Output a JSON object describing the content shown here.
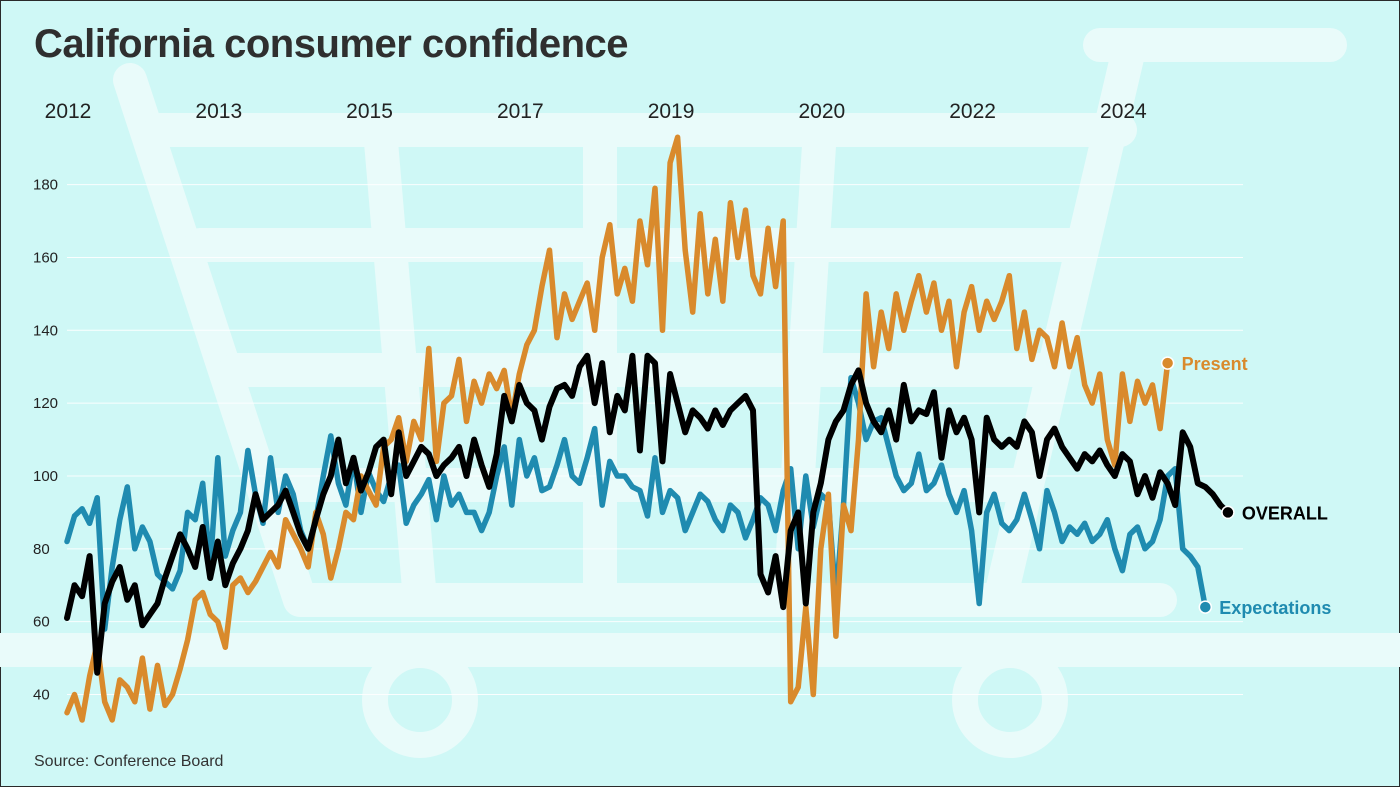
{
  "title": "California consumer confidence",
  "source": "Source: Conference Board",
  "colors": {
    "background": "#cff8f6",
    "cart": "#e9fbfa",
    "overall": "#000000",
    "present": "#d98a2c",
    "expectations": "#1f8bb0",
    "grid": "#ffffff"
  },
  "background_icon": "shopping-cart-icon",
  "chart_data": {
    "type": "line",
    "title": "California consumer confidence",
    "x_tick_labels": [
      "2012",
      "2013",
      "2015",
      "2017",
      "2019",
      "2020",
      "2022",
      "2024"
    ],
    "y_ticks": [
      40,
      60,
      80,
      100,
      120,
      140,
      160,
      180
    ],
    "ylim": [
      33,
      195
    ],
    "x_range": [
      0,
      156
    ],
    "x_tick_positions": [
      0,
      20,
      40,
      60,
      80,
      100,
      120,
      140
    ],
    "grid": "horizontal",
    "legend": "inline labels at right end of each line",
    "series": [
      {
        "name": "Present",
        "color": "#d98a2c",
        "values": [
          35,
          40,
          33,
          45,
          54,
          38,
          33,
          44,
          42,
          38,
          50,
          36,
          48,
          37,
          40,
          47,
          55,
          66,
          68,
          62,
          60,
          53,
          70,
          72,
          68,
          71,
          75,
          79,
          75,
          88,
          84,
          80,
          75,
          90,
          84,
          72,
          80,
          90,
          88,
          100,
          96,
          92,
          108,
          110,
          116,
          104,
          115,
          110,
          135,
          104,
          120,
          122,
          132,
          115,
          126,
          120,
          128,
          124,
          129,
          116,
          128,
          136,
          140,
          152,
          162,
          138,
          150,
          143,
          148,
          153,
          140,
          160,
          169,
          150,
          157,
          148,
          170,
          158,
          179,
          140,
          186,
          193,
          162,
          145,
          172,
          150,
          165,
          148,
          175,
          160,
          173,
          155,
          150,
          168,
          152,
          170,
          38,
          42,
          64,
          40,
          80,
          95,
          56,
          92,
          85,
          110,
          150,
          130,
          145,
          135,
          150,
          140,
          148,
          155,
          145,
          153,
          140,
          148,
          130,
          145,
          152,
          140,
          148,
          143,
          148,
          155,
          135,
          145,
          132,
          140,
          138,
          130,
          142,
          130,
          138,
          125,
          120,
          128,
          110,
          103,
          128,
          115,
          126,
          120,
          125,
          113,
          131
        ]
      },
      {
        "name": "OVERALL",
        "color": "#000000",
        "values": [
          61,
          70,
          67,
          78,
          46,
          65,
          71,
          75,
          66,
          70,
          59,
          62,
          65,
          72,
          78,
          84,
          80,
          75,
          86,
          72,
          82,
          70,
          76,
          80,
          85,
          95,
          88,
          90,
          92,
          96,
          90,
          84,
          80,
          88,
          95,
          100,
          110,
          98,
          105,
          96,
          101,
          108,
          110,
          95,
          112,
          100,
          104,
          108,
          106,
          100,
          103,
          105,
          108,
          100,
          110,
          103,
          97,
          106,
          122,
          115,
          125,
          120,
          118,
          110,
          119,
          124,
          125,
          122,
          130,
          133,
          120,
          131,
          112,
          122,
          118,
          133,
          107,
          133,
          131,
          104,
          128,
          120,
          112,
          118,
          116,
          113,
          118,
          114,
          118,
          120,
          122,
          118,
          73,
          68,
          78,
          64,
          85,
          90,
          65,
          90,
          98,
          110,
          115,
          118,
          125,
          129,
          120,
          115,
          112,
          118,
          110,
          125,
          115,
          118,
          117,
          123,
          105,
          118,
          112,
          116,
          110,
          90,
          116,
          110,
          108,
          110,
          108,
          115,
          112,
          100,
          110,
          113,
          108,
          105,
          102,
          106,
          104,
          107,
          103,
          100,
          106,
          104,
          95,
          100,
          94,
          101,
          98,
          92,
          112,
          108,
          98,
          97,
          95,
          92,
          90
        ]
      },
      {
        "name": "Expectations",
        "color": "#1f8bb0",
        "values": [
          82,
          89,
          91,
          87,
          94,
          58,
          75,
          88,
          97,
          80,
          86,
          82,
          73,
          71,
          69,
          74,
          90,
          88,
          98,
          75,
          105,
          78,
          85,
          90,
          107,
          95,
          87,
          105,
          90,
          100,
          95,
          85,
          80,
          88,
          100,
          111,
          98,
          92,
          105,
          90,
          101,
          96,
          93,
          100,
          103,
          87,
          92,
          95,
          99,
          88,
          100,
          92,
          95,
          90,
          90,
          85,
          90,
          100,
          108,
          92,
          110,
          100,
          105,
          96,
          97,
          103,
          110,
          100,
          98,
          105,
          113,
          92,
          104,
          100,
          100,
          97,
          96,
          89,
          105,
          90,
          96,
          94,
          85,
          90,
          95,
          93,
          88,
          85,
          92,
          90,
          83,
          88,
          94,
          92,
          85,
          96,
          102,
          80,
          100,
          86,
          95,
          93,
          66,
          92,
          127,
          120,
          110,
          115,
          116,
          108,
          100,
          96,
          98,
          106,
          96,
          98,
          103,
          95,
          90,
          96,
          85,
          65,
          90,
          95,
          87,
          85,
          88,
          95,
          88,
          80,
          96,
          90,
          82,
          86,
          84,
          87,
          82,
          84,
          88,
          80,
          74,
          84,
          86,
          80,
          82,
          88,
          100,
          102,
          80,
          78,
          75,
          64
        ]
      }
    ],
    "end_labels": [
      {
        "name": "Present",
        "text": "Present"
      },
      {
        "name": "OVERALL",
        "text": "OVERALL"
      },
      {
        "name": "Expectations",
        "text": "Expectations"
      }
    ]
  }
}
